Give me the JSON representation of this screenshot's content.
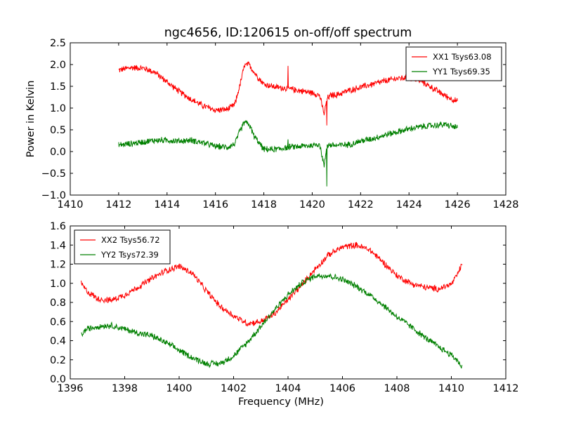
{
  "title": "ngc4656, ID:120615 on-off/off spectrum",
  "colors": {
    "red": "#ff0000",
    "green": "#008000",
    "axes": "#000000",
    "background": "#ffffff"
  },
  "chart_data": [
    {
      "type": "line",
      "title": "ngc4656, ID:120615 on-off/off spectrum",
      "xlabel": "",
      "ylabel": "Power in Kelvin",
      "xlim": [
        1410,
        1428
      ],
      "ylim": [
        -1.0,
        2.5
      ],
      "xticks": [
        "1410",
        "1412",
        "1414",
        "1416",
        "1418",
        "1420",
        "1422",
        "1424",
        "1426",
        "1428"
      ],
      "yticks": [
        "−1.0",
        "−0.5",
        "0.0",
        "0.5",
        "1.0",
        "1.5",
        "2.0",
        "2.5"
      ],
      "legend_position": "top-right",
      "grid": false,
      "series": [
        {
          "name": "XX1 Tsys63.08",
          "color": "#ff0000",
          "x": [
            1412.0,
            1412.5,
            1413.0,
            1413.5,
            1414.0,
            1414.5,
            1415.0,
            1415.5,
            1416.0,
            1416.5,
            1416.8,
            1417.0,
            1417.2,
            1417.4,
            1417.6,
            1418.0,
            1418.5,
            1419.0,
            1419.5,
            1420.0,
            1420.3,
            1420.5,
            1420.6,
            1420.8,
            1421.0,
            1421.5,
            1422.0,
            1422.5,
            1423.0,
            1423.5,
            1424.0,
            1424.5,
            1425.0,
            1425.5,
            1426.0
          ],
          "y": [
            1.87,
            1.93,
            1.92,
            1.82,
            1.6,
            1.38,
            1.2,
            1.05,
            0.95,
            0.97,
            1.08,
            1.5,
            1.98,
            2.0,
            1.82,
            1.55,
            1.48,
            1.45,
            1.4,
            1.35,
            1.3,
            0.85,
            1.22,
            1.3,
            1.3,
            1.4,
            1.48,
            1.55,
            1.62,
            1.68,
            1.7,
            1.62,
            1.45,
            1.28,
            1.15
          ],
          "spikes": [
            {
              "x": 1419.0,
              "y": 1.97
            },
            {
              "x": 1420.6,
              "y": 0.6
            }
          ]
        },
        {
          "name": "YY1 Tsys69.35",
          "color": "#008000",
          "x": [
            1412.0,
            1412.5,
            1413.0,
            1413.5,
            1414.0,
            1414.5,
            1415.0,
            1415.5,
            1416.0,
            1416.5,
            1416.8,
            1417.0,
            1417.2,
            1417.4,
            1417.6,
            1418.0,
            1418.5,
            1419.0,
            1419.5,
            1420.0,
            1420.3,
            1420.5,
            1420.6,
            1420.8,
            1421.0,
            1421.5,
            1422.0,
            1422.5,
            1423.0,
            1423.5,
            1424.0,
            1424.5,
            1425.0,
            1425.5,
            1426.0
          ],
          "y": [
            0.15,
            0.18,
            0.22,
            0.26,
            0.26,
            0.24,
            0.26,
            0.2,
            0.12,
            0.1,
            0.18,
            0.45,
            0.68,
            0.62,
            0.35,
            0.05,
            0.05,
            0.1,
            0.12,
            0.14,
            0.18,
            -0.35,
            0.15,
            0.15,
            0.14,
            0.16,
            0.24,
            0.3,
            0.38,
            0.45,
            0.52,
            0.57,
            0.6,
            0.62,
            0.55
          ],
          "spikes": [
            {
              "x": 1419.0,
              "y": 0.28
            },
            {
              "x": 1420.6,
              "y": -0.8
            }
          ]
        }
      ]
    },
    {
      "type": "line",
      "title": "",
      "xlabel": "Frequency (MHz)",
      "ylabel": "",
      "xlim": [
        1396,
        1412
      ],
      "ylim": [
        0.0,
        1.6
      ],
      "xticks": [
        "1396",
        "1398",
        "1400",
        "1402",
        "1404",
        "1406",
        "1408",
        "1410",
        "1412"
      ],
      "yticks": [
        "0.0",
        "0.2",
        "0.4",
        "0.6",
        "0.8",
        "1.0",
        "1.2",
        "1.4",
        "1.6"
      ],
      "legend_position": "top-left",
      "grid": false,
      "series": [
        {
          "name": "XX2 Tsys56.72",
          "color": "#ff0000",
          "x": [
            1396.4,
            1396.6,
            1397.0,
            1397.5,
            1398.0,
            1398.5,
            1399.0,
            1399.5,
            1400.0,
            1400.5,
            1401.0,
            1401.5,
            1402.0,
            1402.5,
            1403.0,
            1403.5,
            1404.0,
            1404.5,
            1405.0,
            1405.5,
            1406.0,
            1406.5,
            1407.0,
            1407.5,
            1408.0,
            1408.5,
            1409.0,
            1409.5,
            1410.0,
            1410.2,
            1410.4
          ],
          "y": [
            1.0,
            0.92,
            0.84,
            0.82,
            0.88,
            0.96,
            1.05,
            1.13,
            1.18,
            1.1,
            0.92,
            0.76,
            0.66,
            0.58,
            0.6,
            0.68,
            0.83,
            0.98,
            1.15,
            1.3,
            1.38,
            1.4,
            1.35,
            1.22,
            1.08,
            1.0,
            0.96,
            0.94,
            0.99,
            1.08,
            1.2
          ]
        },
        {
          "name": "YY2 Tsys72.39",
          "color": "#008000",
          "x": [
            1396.4,
            1396.6,
            1397.0,
            1397.5,
            1398.0,
            1398.5,
            1399.0,
            1399.5,
            1400.0,
            1400.5,
            1401.0,
            1401.5,
            1402.0,
            1402.5,
            1403.0,
            1403.5,
            1404.0,
            1404.5,
            1405.0,
            1405.5,
            1406.0,
            1406.5,
            1407.0,
            1407.5,
            1408.0,
            1408.5,
            1409.0,
            1409.5,
            1410.0,
            1410.2,
            1410.4
          ],
          "y": [
            0.46,
            0.52,
            0.55,
            0.56,
            0.52,
            0.48,
            0.45,
            0.38,
            0.3,
            0.22,
            0.16,
            0.16,
            0.24,
            0.38,
            0.55,
            0.72,
            0.88,
            1.0,
            1.08,
            1.08,
            1.04,
            0.97,
            0.88,
            0.77,
            0.65,
            0.55,
            0.44,
            0.34,
            0.25,
            0.2,
            0.12
          ]
        }
      ]
    }
  ]
}
